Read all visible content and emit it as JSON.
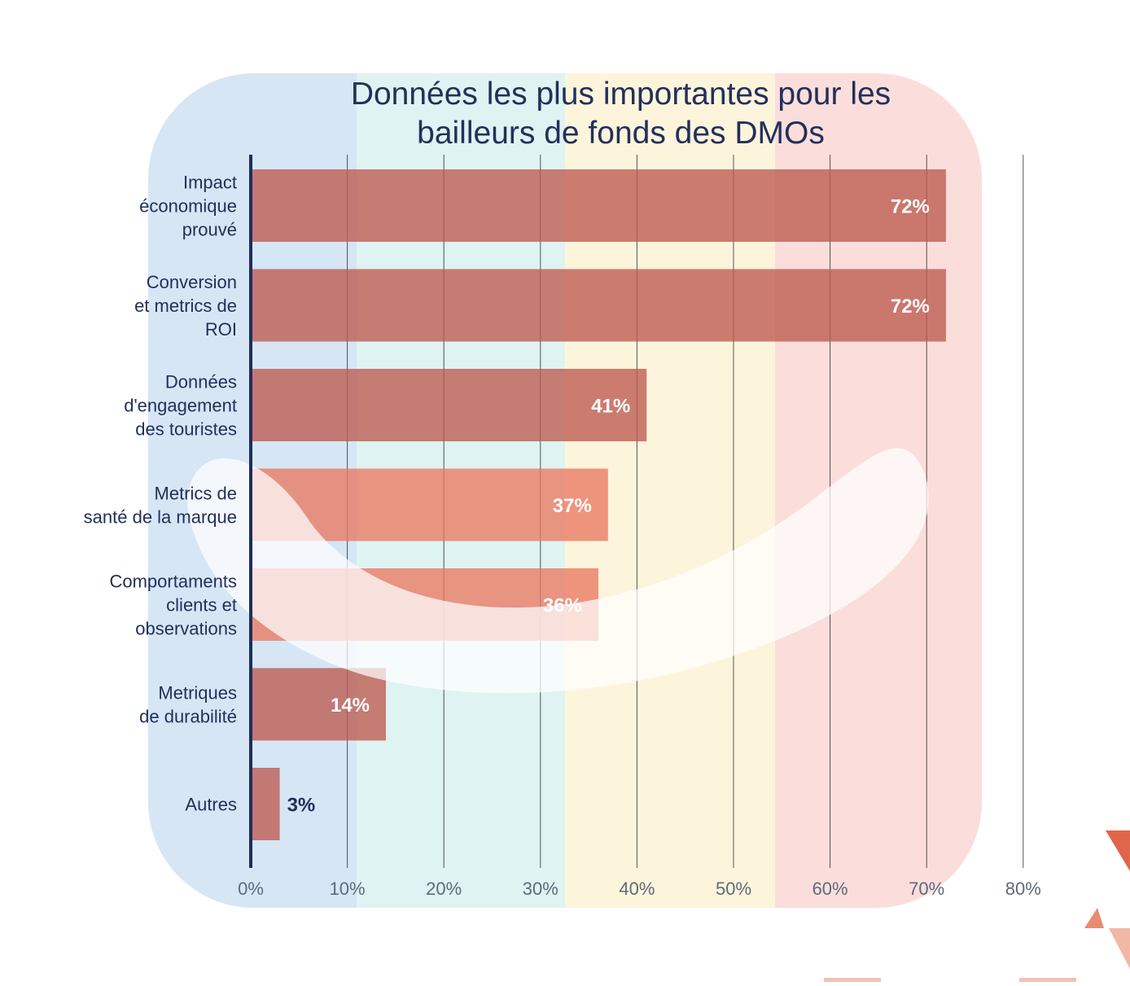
{
  "colors": {
    "band_blue": "#d6e6f5",
    "band_teal": "#dff3f2",
    "band_yellow": "#fdf4dc",
    "band_pink": "#fbdedb",
    "bar_dark": "#bd5a4f",
    "bar_light": "#e97862",
    "axis": "#1f2d5a",
    "gridline": "#2b2b2b",
    "title": "#22305a",
    "label": "#22305a"
  },
  "chart_data": {
    "type": "bar",
    "orientation": "horizontal",
    "title_lines": [
      "Données les plus importantes pour les",
      "bailleurs de fonds des DMOs"
    ],
    "categories": [
      [
        "Impact",
        "économique",
        "prouvé"
      ],
      [
        "Conversion",
        "et metrics de",
        "ROI"
      ],
      [
        "Données",
        "d'engagement",
        "des touristes"
      ],
      [
        "Metrics de",
        "santé de la marque"
      ],
      [
        "Comportaments",
        "clients et",
        "observations"
      ],
      [
        "Metriques",
        "de durabilité"
      ],
      [
        "Autres"
      ]
    ],
    "values": [
      72,
      72,
      41,
      37,
      36,
      14,
      3
    ],
    "value_labels": [
      "72%",
      "72%",
      "41%",
      "37%",
      "36%",
      "14%",
      "3%"
    ],
    "xlim": [
      0,
      80
    ],
    "xticks": [
      0,
      10,
      20,
      30,
      40,
      50,
      60,
      70,
      80
    ],
    "xtick_labels": [
      "0%",
      "10%",
      "20%",
      "30%",
      "40%",
      "50%",
      "60%",
      "70%",
      "80%"
    ],
    "grid": true,
    "xlabel": "",
    "ylabel": ""
  }
}
